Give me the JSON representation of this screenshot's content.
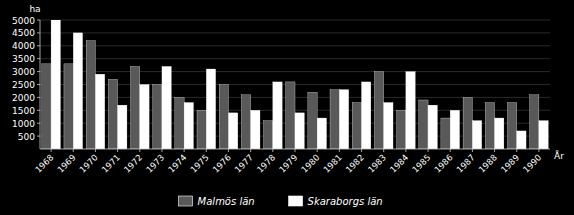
{
  "chart_data": {
    "type": "bar",
    "categories": [
      "1968",
      "1969",
      "1970",
      "1971",
      "1972",
      "1973",
      "1974",
      "1975",
      "1976",
      "1977",
      "1978",
      "1979",
      "1980",
      "1981",
      "1982",
      "1983",
      "1984",
      "1985",
      "1986",
      "1987",
      "1988",
      "1989",
      "1990"
    ],
    "series": [
      {
        "name": "Malmös län",
        "color": "#595959",
        "values": [
          3300,
          3300,
          4200,
          2700,
          3200,
          2500,
          2000,
          1500,
          2500,
          2100,
          1100,
          2600,
          2200,
          2300,
          1800,
          3000,
          1500,
          1900,
          1200,
          2000,
          1800,
          1800,
          2100
        ]
      },
      {
        "name": "Skaraborgs län",
        "color": "#ffffff",
        "values": [
          5000,
          4500,
          2900,
          1700,
          2500,
          3200,
          1800,
          3100,
          1400,
          1500,
          2600,
          1400,
          1200,
          2300,
          2600,
          1800,
          3000,
          1700,
          1500,
          1100,
          1200,
          700,
          1100
        ]
      }
    ],
    "x_label": "År",
    "y_label": "ha",
    "ylim": [
      0,
      5000
    ],
    "yticks": [
      500,
      1000,
      1500,
      2000,
      2500,
      3000,
      3500,
      4000,
      4500,
      5000
    ],
    "grid": true,
    "legend": "bottom"
  }
}
